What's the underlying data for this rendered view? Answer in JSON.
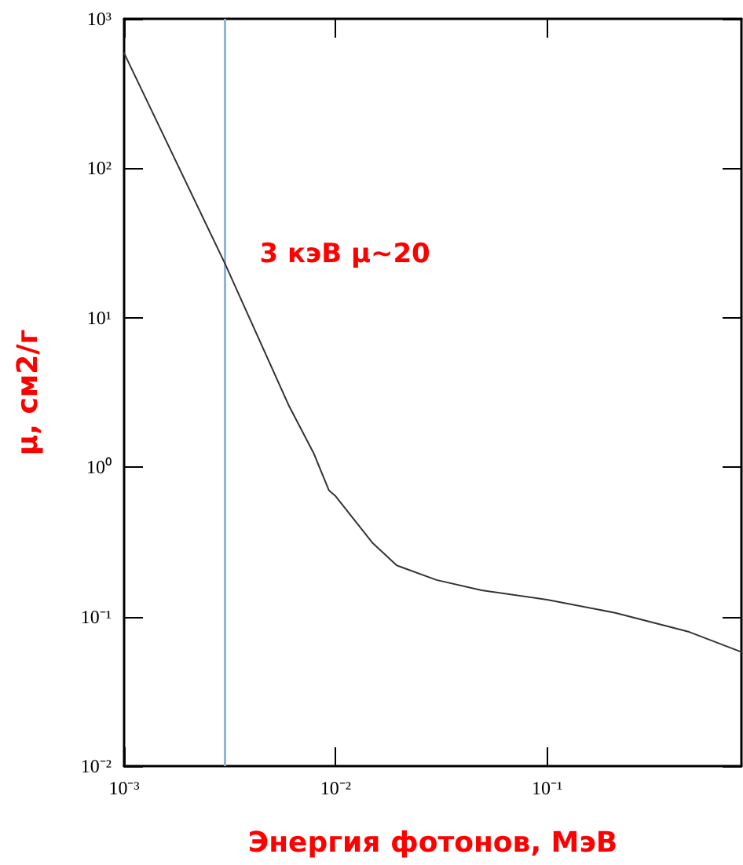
{
  "chart_data": {
    "type": "line",
    "xlabel": "Энергия фотонов, МэВ",
    "ylabel": "μ, см2/г",
    "log": "xy",
    "xlim": [
      0.001,
      0.83
    ],
    "ylim": [
      0.01,
      1000
    ],
    "xticks": [
      {
        "value": 0.001,
        "label": "10⁻³"
      },
      {
        "value": 0.01,
        "label": "10⁻²"
      },
      {
        "value": 0.1,
        "label": "10⁻¹"
      }
    ],
    "yticks": [
      {
        "value": 0.01,
        "label": "10⁻²"
      },
      {
        "value": 0.1,
        "label": "10⁻¹"
      },
      {
        "value": 1,
        "label": "10⁰"
      },
      {
        "value": 10,
        "label": "10¹"
      },
      {
        "value": 100,
        "label": "10²"
      },
      {
        "value": 1000,
        "label": "10³"
      }
    ],
    "grid": false,
    "marker": "none",
    "line_style": "solid",
    "series": [
      {
        "color": "#333333",
        "x": [
          0.001,
          0.003,
          0.006,
          0.0079,
          0.0093,
          0.01,
          0.015,
          0.0195,
          0.03,
          0.049,
          0.1,
          0.21,
          0.47,
          0.83
        ],
        "values": [
          590,
          23,
          2.6,
          1.23,
          0.7,
          0.64,
          0.31,
          0.22,
          0.176,
          0.15,
          0.13,
          0.106,
          0.079,
          0.058
        ]
      }
    ],
    "ref_lines": [
      {
        "axis": "x",
        "value": 0.003,
        "label": null,
        "color": "#8eb4d8"
      }
    ],
    "annotations": [
      {
        "text": "3 кэВ μ~20",
        "x": 0.003,
        "y": 20
      }
    ]
  }
}
